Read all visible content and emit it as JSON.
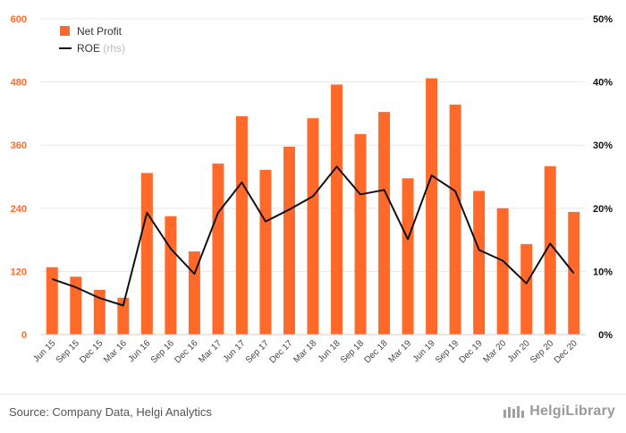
{
  "chart_data": {
    "type": "bar",
    "categories": [
      "Jun 15",
      "Sep 15",
      "Dec 15",
      "Mar 16",
      "Jun 16",
      "Sep 16",
      "Dec 16",
      "Mar 17",
      "Jun 17",
      "Sep 17",
      "Dec 17",
      "Mar 18",
      "Jun 18",
      "Sep 18",
      "Dec 18",
      "Mar 19",
      "Jun 19",
      "Sep 19",
      "Dec 19",
      "Mar 20",
      "Jun 20",
      "Sep 20",
      "Dec 20"
    ],
    "series": [
      {
        "name": "Net Profit",
        "type": "bar",
        "axis": "left",
        "color": "#ff6a2b",
        "values": [
          128,
          110,
          85,
          70,
          307,
          225,
          158,
          325,
          415,
          313,
          357,
          411,
          475,
          381,
          423,
          297,
          487,
          437,
          273,
          240,
          172,
          320,
          233
        ]
      },
      {
        "name": "ROE",
        "type": "line",
        "axis": "right",
        "color": "#111111",
        "values": [
          8.8,
          7.5,
          5.8,
          4.6,
          19.3,
          13.6,
          9.6,
          19.3,
          24.1,
          17.9,
          19.8,
          21.9,
          26.6,
          22.2,
          22.9,
          15.1,
          25.2,
          22.7,
          13.4,
          11.7,
          8.1,
          14.4,
          9.7
        ]
      }
    ],
    "legend": [
      {
        "label": "Net Profit",
        "suffix": ""
      },
      {
        "label": "ROE",
        "suffix": "(rhs)"
      }
    ],
    "legend_position": "top-left",
    "left_axis": {
      "ticks": [
        0,
        120,
        240,
        360,
        480,
        600
      ],
      "ylim": [
        0,
        600
      ],
      "tick_color": "#ff6a2b"
    },
    "right_axis": {
      "ticks": [
        "0%",
        "10%",
        "20%",
        "30%",
        "40%",
        "50%"
      ],
      "ylim": [
        0,
        50
      ]
    },
    "grid": true
  },
  "footer": {
    "source": "Source: Company Data, Helgi Analytics",
    "brand": "HelgiLibrary"
  }
}
